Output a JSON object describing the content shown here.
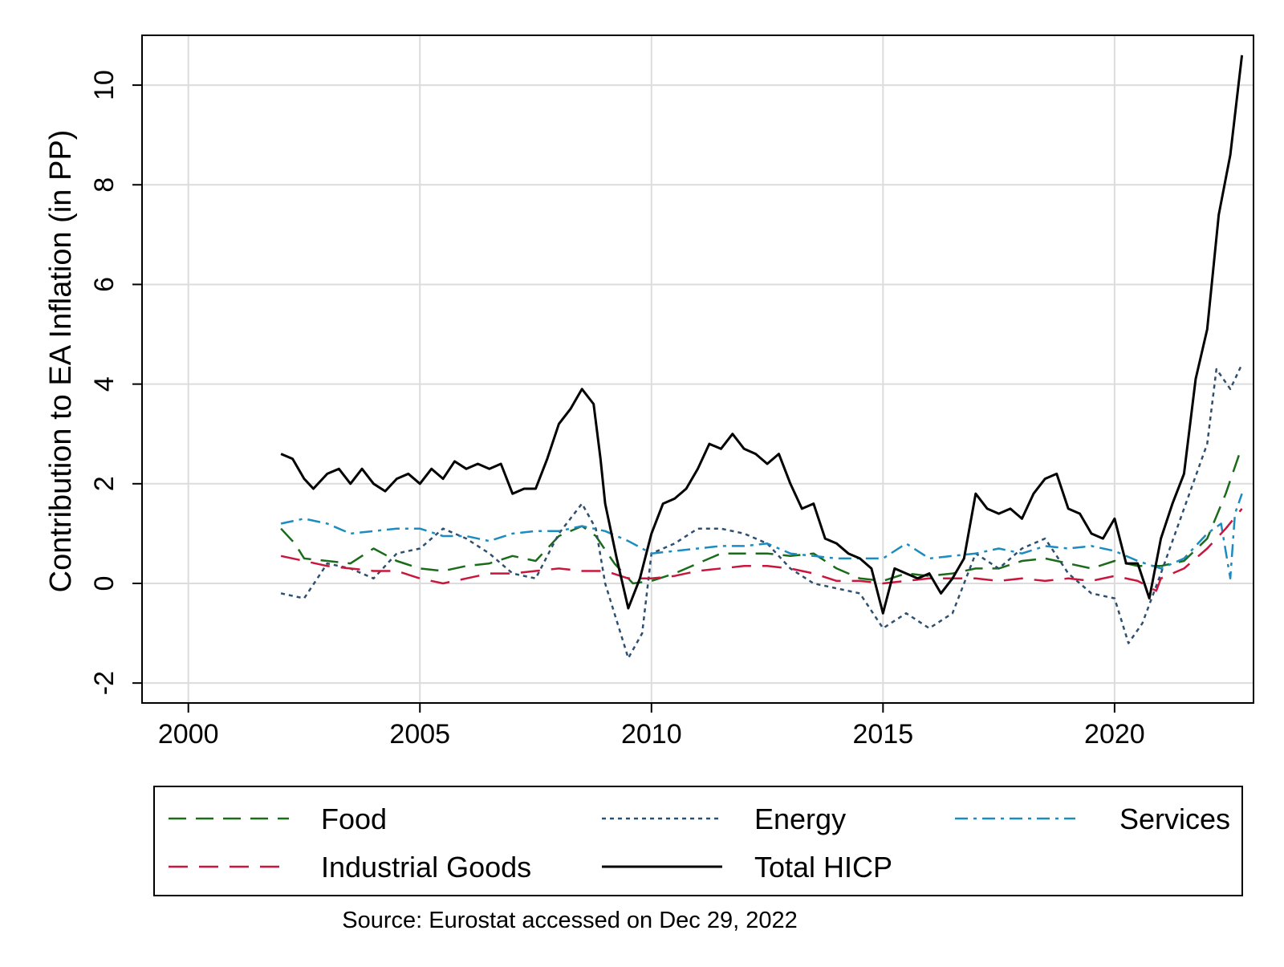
{
  "chart_data": {
    "type": "line",
    "title": "",
    "xlabel": "",
    "ylabel": "Contribution to EA Inflation (in PP)",
    "xlim": [
      1999,
      2023
    ],
    "ylim": [
      -2.4,
      11
    ],
    "xticks": [
      2000,
      2005,
      2010,
      2015,
      2020
    ],
    "yticks": [
      -2,
      0,
      2,
      4,
      6,
      8,
      10
    ],
    "grid": true,
    "legend_position": "bottom",
    "source_note": "Source: Eurostat accessed on Dec 29, 2022",
    "series": [
      {
        "name": "Food",
        "color": "#1a6b1a",
        "dash": "dashed",
        "points": [
          [
            2002.0,
            1.1
          ],
          [
            2002.3,
            0.8
          ],
          [
            2002.5,
            0.5
          ],
          [
            2003.0,
            0.45
          ],
          [
            2003.5,
            0.4
          ],
          [
            2004.0,
            0.7
          ],
          [
            2004.5,
            0.45
          ],
          [
            2005.0,
            0.3
          ],
          [
            2005.5,
            0.25
          ],
          [
            2006.0,
            0.35
          ],
          [
            2006.5,
            0.4
          ],
          [
            2007.0,
            0.55
          ],
          [
            2007.5,
            0.45
          ],
          [
            2008.0,
            0.95
          ],
          [
            2008.5,
            1.15
          ],
          [
            2008.8,
            0.95
          ],
          [
            2009.2,
            0.4
          ],
          [
            2009.6,
            0.0
          ],
          [
            2010.0,
            0.05
          ],
          [
            2010.5,
            0.2
          ],
          [
            2011.0,
            0.4
          ],
          [
            2011.5,
            0.6
          ],
          [
            2012.0,
            0.6
          ],
          [
            2012.5,
            0.6
          ],
          [
            2013.0,
            0.55
          ],
          [
            2013.5,
            0.6
          ],
          [
            2014.0,
            0.3
          ],
          [
            2014.5,
            0.1
          ],
          [
            2015.0,
            0.05
          ],
          [
            2015.5,
            0.2
          ],
          [
            2016.0,
            0.15
          ],
          [
            2016.5,
            0.2
          ],
          [
            2017.0,
            0.3
          ],
          [
            2017.5,
            0.3
          ],
          [
            2018.0,
            0.45
          ],
          [
            2018.5,
            0.5
          ],
          [
            2019.0,
            0.4
          ],
          [
            2019.5,
            0.3
          ],
          [
            2020.0,
            0.45
          ],
          [
            2020.5,
            0.35
          ],
          [
            2021.0,
            0.35
          ],
          [
            2021.5,
            0.45
          ],
          [
            2022.0,
            0.9
          ],
          [
            2022.4,
            1.8
          ],
          [
            2022.75,
            2.75
          ]
        ]
      },
      {
        "name": "Energy",
        "color": "#2f4f6f",
        "dash": "dotted",
        "points": [
          [
            2002.0,
            -0.2
          ],
          [
            2002.5,
            -0.3
          ],
          [
            2003.0,
            0.4
          ],
          [
            2003.5,
            0.3
          ],
          [
            2004.0,
            0.1
          ],
          [
            2004.5,
            0.6
          ],
          [
            2005.0,
            0.7
          ],
          [
            2005.5,
            1.1
          ],
          [
            2006.0,
            0.9
          ],
          [
            2006.5,
            0.6
          ],
          [
            2007.0,
            0.2
          ],
          [
            2007.5,
            0.1
          ],
          [
            2008.0,
            1.0
          ],
          [
            2008.5,
            1.6
          ],
          [
            2008.8,
            1.1
          ],
          [
            2009.0,
            0.0
          ],
          [
            2009.5,
            -1.5
          ],
          [
            2009.8,
            -1.0
          ],
          [
            2010.0,
            0.6
          ],
          [
            2010.5,
            0.8
          ],
          [
            2011.0,
            1.1
          ],
          [
            2011.5,
            1.1
          ],
          [
            2012.0,
            1.0
          ],
          [
            2012.5,
            0.8
          ],
          [
            2013.0,
            0.3
          ],
          [
            2013.5,
            0.0
          ],
          [
            2014.0,
            -0.1
          ],
          [
            2014.5,
            -0.2
          ],
          [
            2015.0,
            -0.9
          ],
          [
            2015.5,
            -0.6
          ],
          [
            2016.0,
            -0.9
          ],
          [
            2016.5,
            -0.6
          ],
          [
            2017.0,
            0.6
          ],
          [
            2017.5,
            0.3
          ],
          [
            2018.0,
            0.7
          ],
          [
            2018.5,
            0.9
          ],
          [
            2019.0,
            0.2
          ],
          [
            2019.5,
            -0.2
          ],
          [
            2020.0,
            -0.3
          ],
          [
            2020.3,
            -1.2
          ],
          [
            2020.6,
            -0.8
          ],
          [
            2021.0,
            0.2
          ],
          [
            2021.5,
            1.5
          ],
          [
            2022.0,
            2.8
          ],
          [
            2022.2,
            4.3
          ],
          [
            2022.5,
            3.9
          ],
          [
            2022.75,
            4.4
          ]
        ]
      },
      {
        "name": "Services",
        "color": "#1c8cc0",
        "dash": "dashdot",
        "points": [
          [
            2002.0,
            1.2
          ],
          [
            2002.5,
            1.3
          ],
          [
            2003.0,
            1.2
          ],
          [
            2003.5,
            1.0
          ],
          [
            2004.0,
            1.05
          ],
          [
            2004.5,
            1.1
          ],
          [
            2005.0,
            1.1
          ],
          [
            2005.5,
            0.95
          ],
          [
            2006.0,
            0.95
          ],
          [
            2006.5,
            0.85
          ],
          [
            2007.0,
            1.0
          ],
          [
            2007.5,
            1.05
          ],
          [
            2008.0,
            1.05
          ],
          [
            2008.5,
            1.15
          ],
          [
            2009.0,
            1.05
          ],
          [
            2009.5,
            0.85
          ],
          [
            2010.0,
            0.6
          ],
          [
            2010.5,
            0.65
          ],
          [
            2011.0,
            0.7
          ],
          [
            2011.5,
            0.75
          ],
          [
            2012.0,
            0.75
          ],
          [
            2012.5,
            0.8
          ],
          [
            2013.0,
            0.6
          ],
          [
            2013.5,
            0.55
          ],
          [
            2014.0,
            0.5
          ],
          [
            2014.5,
            0.5
          ],
          [
            2015.0,
            0.5
          ],
          [
            2015.5,
            0.8
          ],
          [
            2016.0,
            0.5
          ],
          [
            2016.5,
            0.55
          ],
          [
            2017.0,
            0.6
          ],
          [
            2017.5,
            0.7
          ],
          [
            2018.0,
            0.6
          ],
          [
            2018.5,
            0.75
          ],
          [
            2019.0,
            0.7
          ],
          [
            2019.5,
            0.75
          ],
          [
            2020.0,
            0.65
          ],
          [
            2020.5,
            0.45
          ],
          [
            2021.0,
            0.3
          ],
          [
            2021.5,
            0.5
          ],
          [
            2022.0,
            1.0
          ],
          [
            2022.3,
            1.2
          ],
          [
            2022.5,
            0.1
          ],
          [
            2022.6,
            1.4
          ],
          [
            2022.75,
            1.8
          ]
        ]
      },
      {
        "name": "Industrial Goods",
        "color": "#c8163c",
        "dash": "longdash",
        "points": [
          [
            2002.0,
            0.55
          ],
          [
            2002.5,
            0.45
          ],
          [
            2003.0,
            0.35
          ],
          [
            2003.5,
            0.3
          ],
          [
            2004.0,
            0.25
          ],
          [
            2004.5,
            0.25
          ],
          [
            2005.0,
            0.1
          ],
          [
            2005.5,
            0.0
          ],
          [
            2006.0,
            0.1
          ],
          [
            2006.5,
            0.2
          ],
          [
            2007.0,
            0.2
          ],
          [
            2007.5,
            0.25
          ],
          [
            2008.0,
            0.3
          ],
          [
            2008.5,
            0.25
          ],
          [
            2009.0,
            0.25
          ],
          [
            2009.5,
            0.1
          ],
          [
            2010.0,
            0.1
          ],
          [
            2010.5,
            0.15
          ],
          [
            2011.0,
            0.25
          ],
          [
            2011.5,
            0.3
          ],
          [
            2012.0,
            0.35
          ],
          [
            2012.5,
            0.35
          ],
          [
            2013.0,
            0.3
          ],
          [
            2013.5,
            0.2
          ],
          [
            2014.0,
            0.05
          ],
          [
            2014.5,
            0.05
          ],
          [
            2015.0,
            0.0
          ],
          [
            2015.5,
            0.05
          ],
          [
            2016.0,
            0.1
          ],
          [
            2016.5,
            0.1
          ],
          [
            2017.0,
            0.1
          ],
          [
            2017.5,
            0.05
          ],
          [
            2018.0,
            0.1
          ],
          [
            2018.5,
            0.05
          ],
          [
            2019.0,
            0.1
          ],
          [
            2019.5,
            0.05
          ],
          [
            2020.0,
            0.15
          ],
          [
            2020.5,
            0.05
          ],
          [
            2020.9,
            -0.15
          ],
          [
            2021.0,
            0.1
          ],
          [
            2021.5,
            0.3
          ],
          [
            2022.0,
            0.7
          ],
          [
            2022.4,
            1.1
          ],
          [
            2022.75,
            1.5
          ]
        ]
      },
      {
        "name": "Total HICP",
        "color": "#000000",
        "dash": "solid",
        "points": [
          [
            2002.0,
            2.6
          ],
          [
            2002.25,
            2.5
          ],
          [
            2002.5,
            2.1
          ],
          [
            2002.7,
            1.9
          ],
          [
            2003.0,
            2.2
          ],
          [
            2003.25,
            2.3
          ],
          [
            2003.5,
            2.0
          ],
          [
            2003.75,
            2.3
          ],
          [
            2004.0,
            2.0
          ],
          [
            2004.25,
            1.85
          ],
          [
            2004.5,
            2.1
          ],
          [
            2004.75,
            2.2
          ],
          [
            2005.0,
            2.0
          ],
          [
            2005.25,
            2.3
          ],
          [
            2005.5,
            2.1
          ],
          [
            2005.75,
            2.45
          ],
          [
            2006.0,
            2.3
          ],
          [
            2006.25,
            2.4
          ],
          [
            2006.5,
            2.3
          ],
          [
            2006.75,
            2.4
          ],
          [
            2007.0,
            1.8
          ],
          [
            2007.25,
            1.9
          ],
          [
            2007.5,
            1.9
          ],
          [
            2007.75,
            2.5
          ],
          [
            2008.0,
            3.2
          ],
          [
            2008.25,
            3.5
          ],
          [
            2008.5,
            3.9
          ],
          [
            2008.75,
            3.6
          ],
          [
            2008.9,
            2.5
          ],
          [
            2009.0,
            1.6
          ],
          [
            2009.25,
            0.5
          ],
          [
            2009.5,
            -0.5
          ],
          [
            2009.75,
            0.1
          ],
          [
            2010.0,
            1.0
          ],
          [
            2010.25,
            1.6
          ],
          [
            2010.5,
            1.7
          ],
          [
            2010.75,
            1.9
          ],
          [
            2011.0,
            2.3
          ],
          [
            2011.25,
            2.8
          ],
          [
            2011.5,
            2.7
          ],
          [
            2011.75,
            3.0
          ],
          [
            2012.0,
            2.7
          ],
          [
            2012.25,
            2.6
          ],
          [
            2012.5,
            2.4
          ],
          [
            2012.75,
            2.6
          ],
          [
            2013.0,
            2.0
          ],
          [
            2013.25,
            1.5
          ],
          [
            2013.5,
            1.6
          ],
          [
            2013.75,
            0.9
          ],
          [
            2014.0,
            0.8
          ],
          [
            2014.25,
            0.6
          ],
          [
            2014.5,
            0.5
          ],
          [
            2014.75,
            0.3
          ],
          [
            2015.0,
            -0.6
          ],
          [
            2015.25,
            0.3
          ],
          [
            2015.5,
            0.2
          ],
          [
            2015.75,
            0.1
          ],
          [
            2016.0,
            0.2
          ],
          [
            2016.25,
            -0.2
          ],
          [
            2016.5,
            0.1
          ],
          [
            2016.75,
            0.5
          ],
          [
            2017.0,
            1.8
          ],
          [
            2017.25,
            1.5
          ],
          [
            2017.5,
            1.4
          ],
          [
            2017.75,
            1.5
          ],
          [
            2018.0,
            1.3
          ],
          [
            2018.25,
            1.8
          ],
          [
            2018.5,
            2.1
          ],
          [
            2018.75,
            2.2
          ],
          [
            2019.0,
            1.5
          ],
          [
            2019.25,
            1.4
          ],
          [
            2019.5,
            1.0
          ],
          [
            2019.75,
            0.9
          ],
          [
            2020.0,
            1.3
          ],
          [
            2020.25,
            0.4
          ],
          [
            2020.5,
            0.4
          ],
          [
            2020.75,
            -0.3
          ],
          [
            2021.0,
            0.9
          ],
          [
            2021.25,
            1.6
          ],
          [
            2021.5,
            2.2
          ],
          [
            2021.75,
            4.1
          ],
          [
            2022.0,
            5.1
          ],
          [
            2022.25,
            7.4
          ],
          [
            2022.5,
            8.6
          ],
          [
            2022.75,
            10.6
          ]
        ]
      }
    ]
  }
}
